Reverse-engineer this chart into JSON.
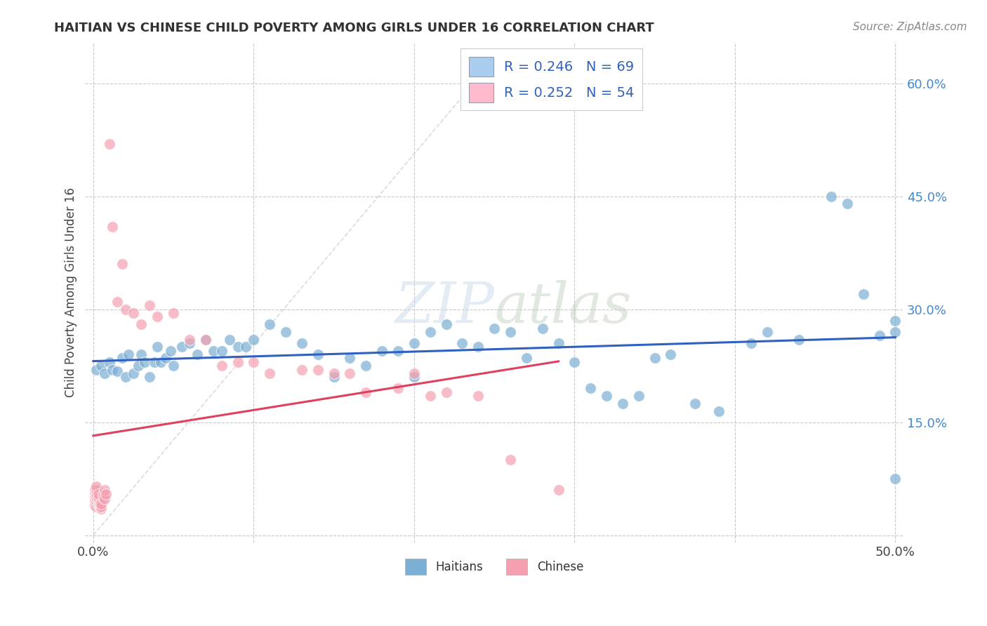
{
  "title": "HAITIAN VS CHINESE CHILD POVERTY AMONG GIRLS UNDER 16 CORRELATION CHART",
  "source": "Source: ZipAtlas.com",
  "ylabel": "Child Poverty Among Girls Under 16",
  "xlim": [
    -0.005,
    0.505
  ],
  "ylim": [
    -0.01,
    0.655
  ],
  "background_color": "#ffffff",
  "grid_color": "#bbbbbb",
  "watermark": "ZIPatlas",
  "blue_color": "#7bafd4",
  "pink_color": "#f4a0b0",
  "trend_blue_color": "#3060c0",
  "trend_pink_color": "#e04060",
  "tick_label_color": "#4488cc",
  "haitian_x": [
    0.002,
    0.005,
    0.007,
    0.01,
    0.012,
    0.015,
    0.018,
    0.02,
    0.022,
    0.025,
    0.028,
    0.03,
    0.032,
    0.035,
    0.038,
    0.04,
    0.042,
    0.045,
    0.048,
    0.05,
    0.055,
    0.06,
    0.065,
    0.07,
    0.075,
    0.08,
    0.085,
    0.09,
    0.095,
    0.1,
    0.11,
    0.12,
    0.13,
    0.14,
    0.15,
    0.16,
    0.17,
    0.18,
    0.19,
    0.2,
    0.2,
    0.21,
    0.22,
    0.23,
    0.24,
    0.25,
    0.26,
    0.27,
    0.28,
    0.29,
    0.3,
    0.31,
    0.32,
    0.33,
    0.34,
    0.35,
    0.36,
    0.375,
    0.39,
    0.41,
    0.42,
    0.44,
    0.46,
    0.47,
    0.48,
    0.49,
    0.5,
    0.5,
    0.5
  ],
  "haitian_y": [
    0.22,
    0.225,
    0.215,
    0.23,
    0.22,
    0.218,
    0.235,
    0.21,
    0.24,
    0.215,
    0.225,
    0.24,
    0.23,
    0.21,
    0.23,
    0.25,
    0.23,
    0.235,
    0.245,
    0.225,
    0.25,
    0.255,
    0.24,
    0.26,
    0.245,
    0.245,
    0.26,
    0.25,
    0.25,
    0.26,
    0.28,
    0.27,
    0.255,
    0.24,
    0.21,
    0.235,
    0.225,
    0.245,
    0.245,
    0.255,
    0.21,
    0.27,
    0.28,
    0.255,
    0.25,
    0.275,
    0.27,
    0.235,
    0.275,
    0.255,
    0.23,
    0.195,
    0.185,
    0.175,
    0.185,
    0.235,
    0.24,
    0.175,
    0.165,
    0.255,
    0.27,
    0.26,
    0.45,
    0.44,
    0.32,
    0.265,
    0.075,
    0.27,
    0.285
  ],
  "chinese_x": [
    0.001,
    0.001,
    0.001,
    0.001,
    0.001,
    0.002,
    0.002,
    0.002,
    0.002,
    0.002,
    0.002,
    0.003,
    0.003,
    0.003,
    0.003,
    0.004,
    0.004,
    0.004,
    0.005,
    0.005,
    0.005,
    0.006,
    0.006,
    0.007,
    0.007,
    0.008,
    0.01,
    0.012,
    0.015,
    0.018,
    0.02,
    0.025,
    0.03,
    0.035,
    0.04,
    0.05,
    0.06,
    0.07,
    0.08,
    0.09,
    0.1,
    0.11,
    0.13,
    0.14,
    0.15,
    0.16,
    0.17,
    0.19,
    0.2,
    0.21,
    0.22,
    0.24,
    0.26,
    0.29
  ],
  "chinese_y": [
    0.06,
    0.055,
    0.05,
    0.045,
    0.04,
    0.038,
    0.045,
    0.05,
    0.055,
    0.06,
    0.065,
    0.04,
    0.045,
    0.05,
    0.055,
    0.04,
    0.038,
    0.042,
    0.035,
    0.038,
    0.042,
    0.055,
    0.05,
    0.048,
    0.06,
    0.055,
    0.52,
    0.41,
    0.31,
    0.36,
    0.3,
    0.295,
    0.28,
    0.305,
    0.29,
    0.295,
    0.26,
    0.26,
    0.225,
    0.23,
    0.23,
    0.215,
    0.22,
    0.22,
    0.215,
    0.215,
    0.19,
    0.195,
    0.215,
    0.185,
    0.19,
    0.185,
    0.1,
    0.06
  ]
}
